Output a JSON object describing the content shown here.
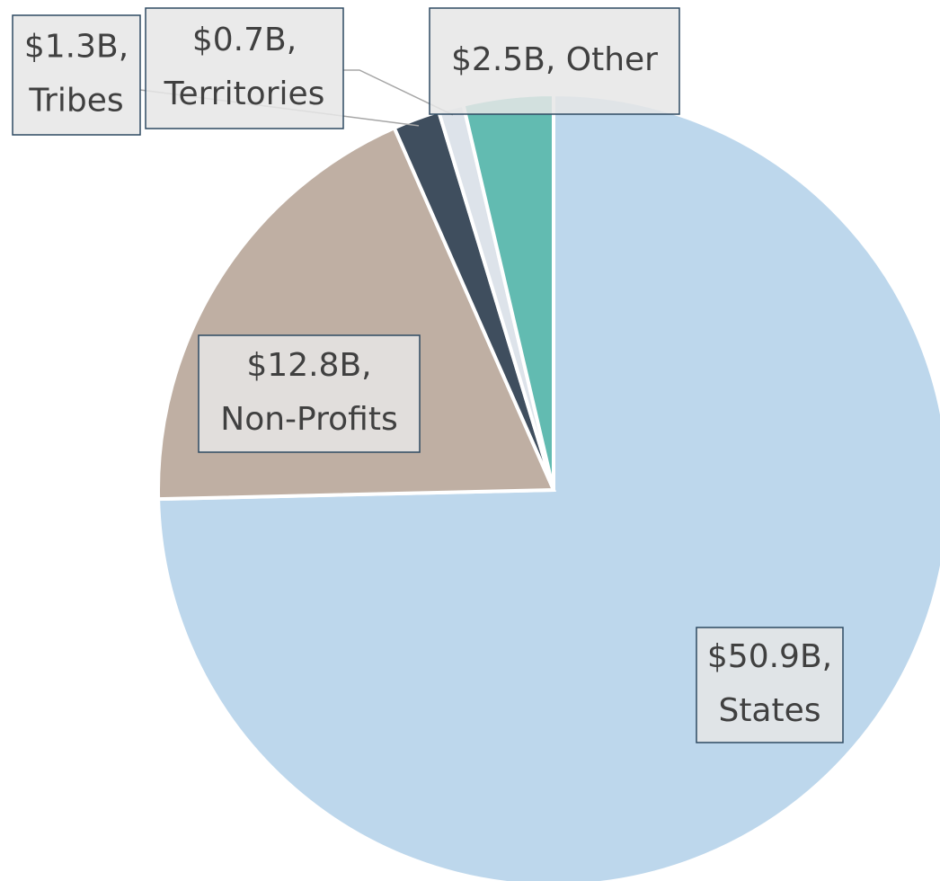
{
  "chart_data": {
    "type": "pie",
    "categories": [
      "States",
      "Non-Profits",
      "Tribes",
      "Territories",
      "Other"
    ],
    "values": [
      50.9,
      12.8,
      1.3,
      0.7,
      2.5
    ],
    "value_labels": [
      "$50.9B,",
      "$12.8B,",
      "$1.3B,",
      "$0.7B,",
      "$2.5B,"
    ],
    "colors": [
      "#bdd7ec",
      "#bfafa3",
      "#3f4e5e",
      "#dde3ea",
      "#62bbb1"
    ]
  }
}
